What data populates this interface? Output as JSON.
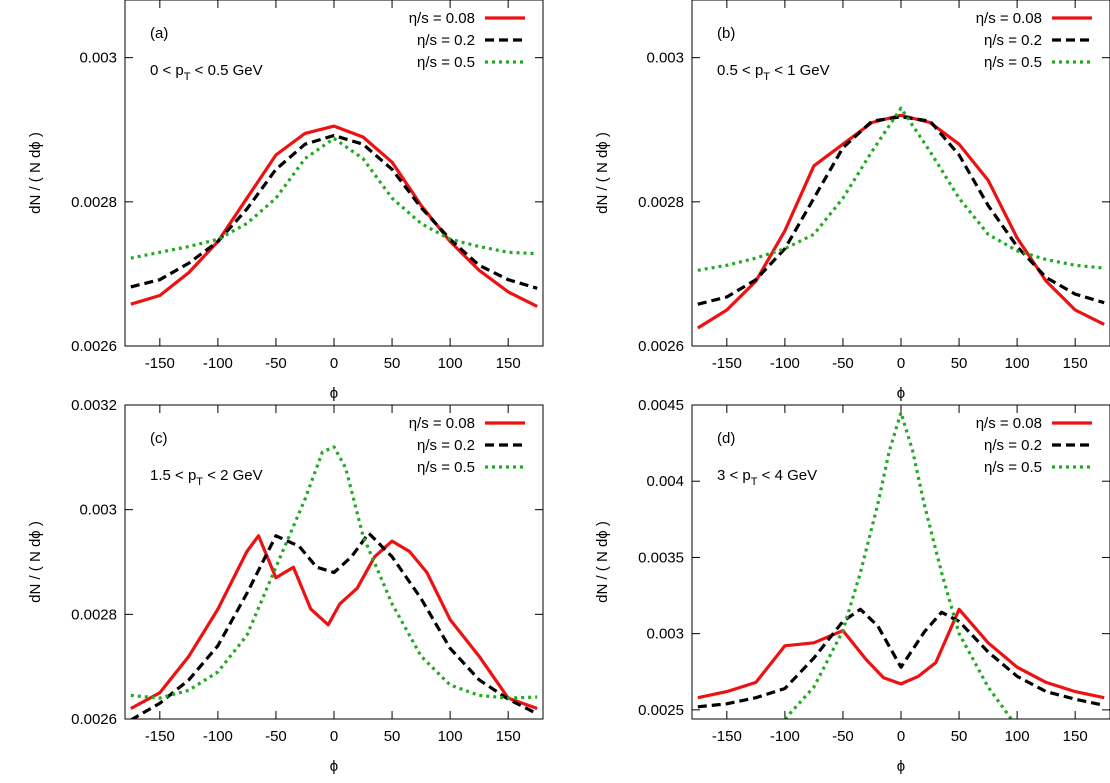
{
  "colors": {
    "eta_008": "#ee1111",
    "eta_02": "#000000",
    "eta_05": "#22aa22"
  },
  "chart_data": [
    {
      "type": "line",
      "panel": "(a)",
      "cut": {
        "pre": "0 < p",
        "sub": "T",
        "post": " < 0.5 GeV"
      },
      "xlabel": "ϕ",
      "ylabel": "dN / ( N dϕ )",
      "xlim": [
        -180,
        180
      ],
      "ylim": [
        0.0026,
        0.00308
      ],
      "xticks": [
        -150,
        -100,
        -50,
        0,
        50,
        100,
        150
      ],
      "yticks": [
        0.0026,
        0.0028,
        0.003
      ],
      "ytick_labels": [
        "0.0026",
        "0.0028",
        "0.003"
      ],
      "legend": "top-right",
      "series": [
        {
          "name": "η/s = 0.08",
          "color_key": "eta_008",
          "dash": "solid",
          "x": [
            -175,
            -150,
            -125,
            -100,
            -75,
            -50,
            -25,
            0,
            25,
            50,
            75,
            100,
            125,
            150,
            175
          ],
          "y": [
            0.002658,
            0.00267,
            0.002702,
            0.002745,
            0.002805,
            0.002865,
            0.002895,
            0.002905,
            0.00289,
            0.002855,
            0.002795,
            0.002745,
            0.002705,
            0.002675,
            0.002655
          ]
        },
        {
          "name": "η/s = 0.2",
          "color_key": "eta_02",
          "dash": "dashed",
          "x": [
            -175,
            -150,
            -125,
            -100,
            -75,
            -50,
            -25,
            0,
            25,
            50,
            75,
            100,
            125,
            150,
            175
          ],
          "y": [
            0.002682,
            0.002692,
            0.002715,
            0.002745,
            0.00279,
            0.002845,
            0.00288,
            0.002892,
            0.00288,
            0.002845,
            0.002792,
            0.002748,
            0.002712,
            0.002692,
            0.00268
          ]
        },
        {
          "name": "η/s = 0.5",
          "color_key": "eta_05",
          "dash": "dotted",
          "x": [
            -175,
            -150,
            -125,
            -100,
            -75,
            -50,
            -25,
            0,
            25,
            50,
            75,
            100,
            125,
            150,
            175
          ],
          "y": [
            0.002722,
            0.00273,
            0.002738,
            0.002748,
            0.00277,
            0.002805,
            0.00286,
            0.002888,
            0.00286,
            0.002805,
            0.00277,
            0.002748,
            0.002738,
            0.00273,
            0.002728
          ]
        }
      ]
    },
    {
      "type": "line",
      "panel": "(b)",
      "cut": {
        "pre": "0.5 < p",
        "sub": "T",
        "post": " < 1 GeV"
      },
      "xlabel": "ϕ",
      "ylabel": "dN / ( N dϕ )",
      "xlim": [
        -180,
        180
      ],
      "ylim": [
        0.0026,
        0.00308
      ],
      "xticks": [
        -150,
        -100,
        -50,
        0,
        50,
        100,
        150
      ],
      "yticks": [
        0.0026,
        0.0028,
        0.003
      ],
      "ytick_labels": [
        "0.0026",
        "0.0028",
        "0.003"
      ],
      "legend": "top-right",
      "series": [
        {
          "name": "η/s = 0.08",
          "color_key": "eta_008",
          "dash": "solid",
          "x": [
            -175,
            -150,
            -125,
            -100,
            -75,
            -50,
            -25,
            0,
            25,
            50,
            75,
            100,
            125,
            150,
            175
          ],
          "y": [
            0.002625,
            0.00265,
            0.00269,
            0.00276,
            0.00285,
            0.00288,
            0.00291,
            0.00292,
            0.00291,
            0.00288,
            0.00283,
            0.00275,
            0.00269,
            0.00265,
            0.00263
          ]
        },
        {
          "name": "η/s = 0.2",
          "color_key": "eta_02",
          "dash": "dashed",
          "x": [
            -175,
            -150,
            -125,
            -100,
            -75,
            -50,
            -25,
            0,
            25,
            50,
            75,
            100,
            125,
            150,
            175
          ],
          "y": [
            0.002658,
            0.002668,
            0.002692,
            0.002735,
            0.002805,
            0.002875,
            0.002912,
            0.002918,
            0.002912,
            0.002865,
            0.002795,
            0.002738,
            0.002695,
            0.002672,
            0.00266
          ]
        },
        {
          "name": "η/s = 0.5",
          "color_key": "eta_05",
          "dash": "dotted",
          "x": [
            -175,
            -150,
            -125,
            -100,
            -75,
            -50,
            -25,
            0,
            25,
            50,
            75,
            100,
            125,
            150,
            175
          ],
          "y": [
            0.002705,
            0.002712,
            0.002722,
            0.002735,
            0.002755,
            0.002805,
            0.00287,
            0.00293,
            0.00287,
            0.002805,
            0.002755,
            0.002732,
            0.00272,
            0.002712,
            0.002708
          ]
        }
      ]
    },
    {
      "type": "line",
      "panel": "(c)",
      "cut": {
        "pre": "1.5 < p",
        "sub": "T",
        "post": " < 2 GeV"
      },
      "xlabel": "ϕ",
      "ylabel": "dN / ( N dϕ )",
      "xlim": [
        -180,
        180
      ],
      "ylim": [
        0.0026,
        0.0032
      ],
      "xticks": [
        -150,
        -100,
        -50,
        0,
        50,
        100,
        150
      ],
      "yticks": [
        0.0026,
        0.0028,
        0.003,
        0.0032
      ],
      "ytick_labels": [
        "0.0026",
        "0.0028",
        "0.003",
        "0.0032"
      ],
      "legend": "top-right",
      "series": [
        {
          "name": "η/s = 0.08",
          "color_key": "eta_008",
          "dash": "solid",
          "x": [
            -175,
            -150,
            -125,
            -100,
            -75,
            -65,
            -50,
            -35,
            -20,
            -5,
            5,
            20,
            35,
            50,
            65,
            80,
            100,
            125,
            150,
            175
          ],
          "y": [
            0.00262,
            0.00265,
            0.00272,
            0.00281,
            0.00292,
            0.00295,
            0.00287,
            0.00289,
            0.00281,
            0.00278,
            0.00282,
            0.00285,
            0.00291,
            0.00294,
            0.00292,
            0.00288,
            0.00279,
            0.00272,
            0.00264,
            0.00262
          ]
        },
        {
          "name": "η/s = 0.2",
          "color_key": "eta_02",
          "dash": "dashed",
          "x": [
            -175,
            -150,
            -125,
            -100,
            -75,
            -50,
            -30,
            -15,
            0,
            15,
            30,
            50,
            75,
            100,
            125,
            150,
            175
          ],
          "y": [
            0.002598,
            0.00263,
            0.002675,
            0.00274,
            0.00284,
            0.00295,
            0.00293,
            0.00289,
            0.00288,
            0.00291,
            0.002955,
            0.00291,
            0.00283,
            0.002735,
            0.002675,
            0.002638,
            0.00261
          ]
        },
        {
          "name": "η/s = 0.5",
          "color_key": "eta_05",
          "dash": "dotted",
          "x": [
            -175,
            -150,
            -125,
            -100,
            -75,
            -50,
            -25,
            -10,
            0,
            10,
            25,
            50,
            75,
            100,
            125,
            150,
            175
          ],
          "y": [
            0.002645,
            0.00264,
            0.002655,
            0.00269,
            0.00276,
            0.00289,
            0.00302,
            0.00311,
            0.00312,
            0.00308,
            0.00295,
            0.00282,
            0.00272,
            0.002665,
            0.002645,
            0.00264,
            0.002642
          ]
        }
      ]
    },
    {
      "type": "line",
      "panel": "(d)",
      "cut": {
        "pre": "3 < p",
        "sub": "T",
        "post": " < 4 GeV"
      },
      "xlabel": "ϕ",
      "ylabel": "dN / ( N dϕ )",
      "xlim": [
        -180,
        180
      ],
      "ylim": [
        0.00244,
        0.0045
      ],
      "xticks": [
        -150,
        -100,
        -50,
        0,
        50,
        100,
        150
      ],
      "yticks": [
        0.0025,
        0.003,
        0.0035,
        0.004,
        0.0045
      ],
      "ytick_labels": [
        "0.0025",
        "0.003",
        "0.0035",
        "0.004",
        "0.0045"
      ],
      "legend": "top-right",
      "series": [
        {
          "name": "η/s = 0.08",
          "color_key": "eta_008",
          "dash": "solid",
          "x": [
            -175,
            -150,
            -125,
            -100,
            -75,
            -50,
            -30,
            -15,
            0,
            15,
            30,
            50,
            75,
            100,
            125,
            150,
            175
          ],
          "y": [
            0.00258,
            0.00262,
            0.00268,
            0.00292,
            0.00294,
            0.00302,
            0.00283,
            0.00271,
            0.00267,
            0.00272,
            0.00281,
            0.00316,
            0.00294,
            0.00278,
            0.00268,
            0.00262,
            0.00258
          ]
        },
        {
          "name": "η/s = 0.2",
          "color_key": "eta_02",
          "dash": "dashed",
          "x": [
            -175,
            -150,
            -125,
            -100,
            -75,
            -50,
            -35,
            -20,
            0,
            20,
            35,
            50,
            75,
            100,
            125,
            150,
            175
          ],
          "y": [
            0.00252,
            0.00254,
            0.00258,
            0.00264,
            0.00284,
            0.00308,
            0.00316,
            0.00305,
            0.00278,
            0.00301,
            0.00314,
            0.00308,
            0.00288,
            0.00272,
            0.00262,
            0.00257,
            0.00253
          ]
        },
        {
          "name": "η/s = 0.5",
          "color_key": "eta_05",
          "dash": "dotted",
          "x": [
            -100,
            -75,
            -50,
            -35,
            -20,
            -10,
            0,
            10,
            20,
            35,
            50,
            75,
            95
          ],
          "y": [
            0.00244,
            0.00265,
            0.00302,
            0.0034,
            0.00385,
            0.0042,
            0.00445,
            0.0042,
            0.00385,
            0.0034,
            0.003,
            0.00265,
            0.00244
          ]
        }
      ]
    }
  ]
}
